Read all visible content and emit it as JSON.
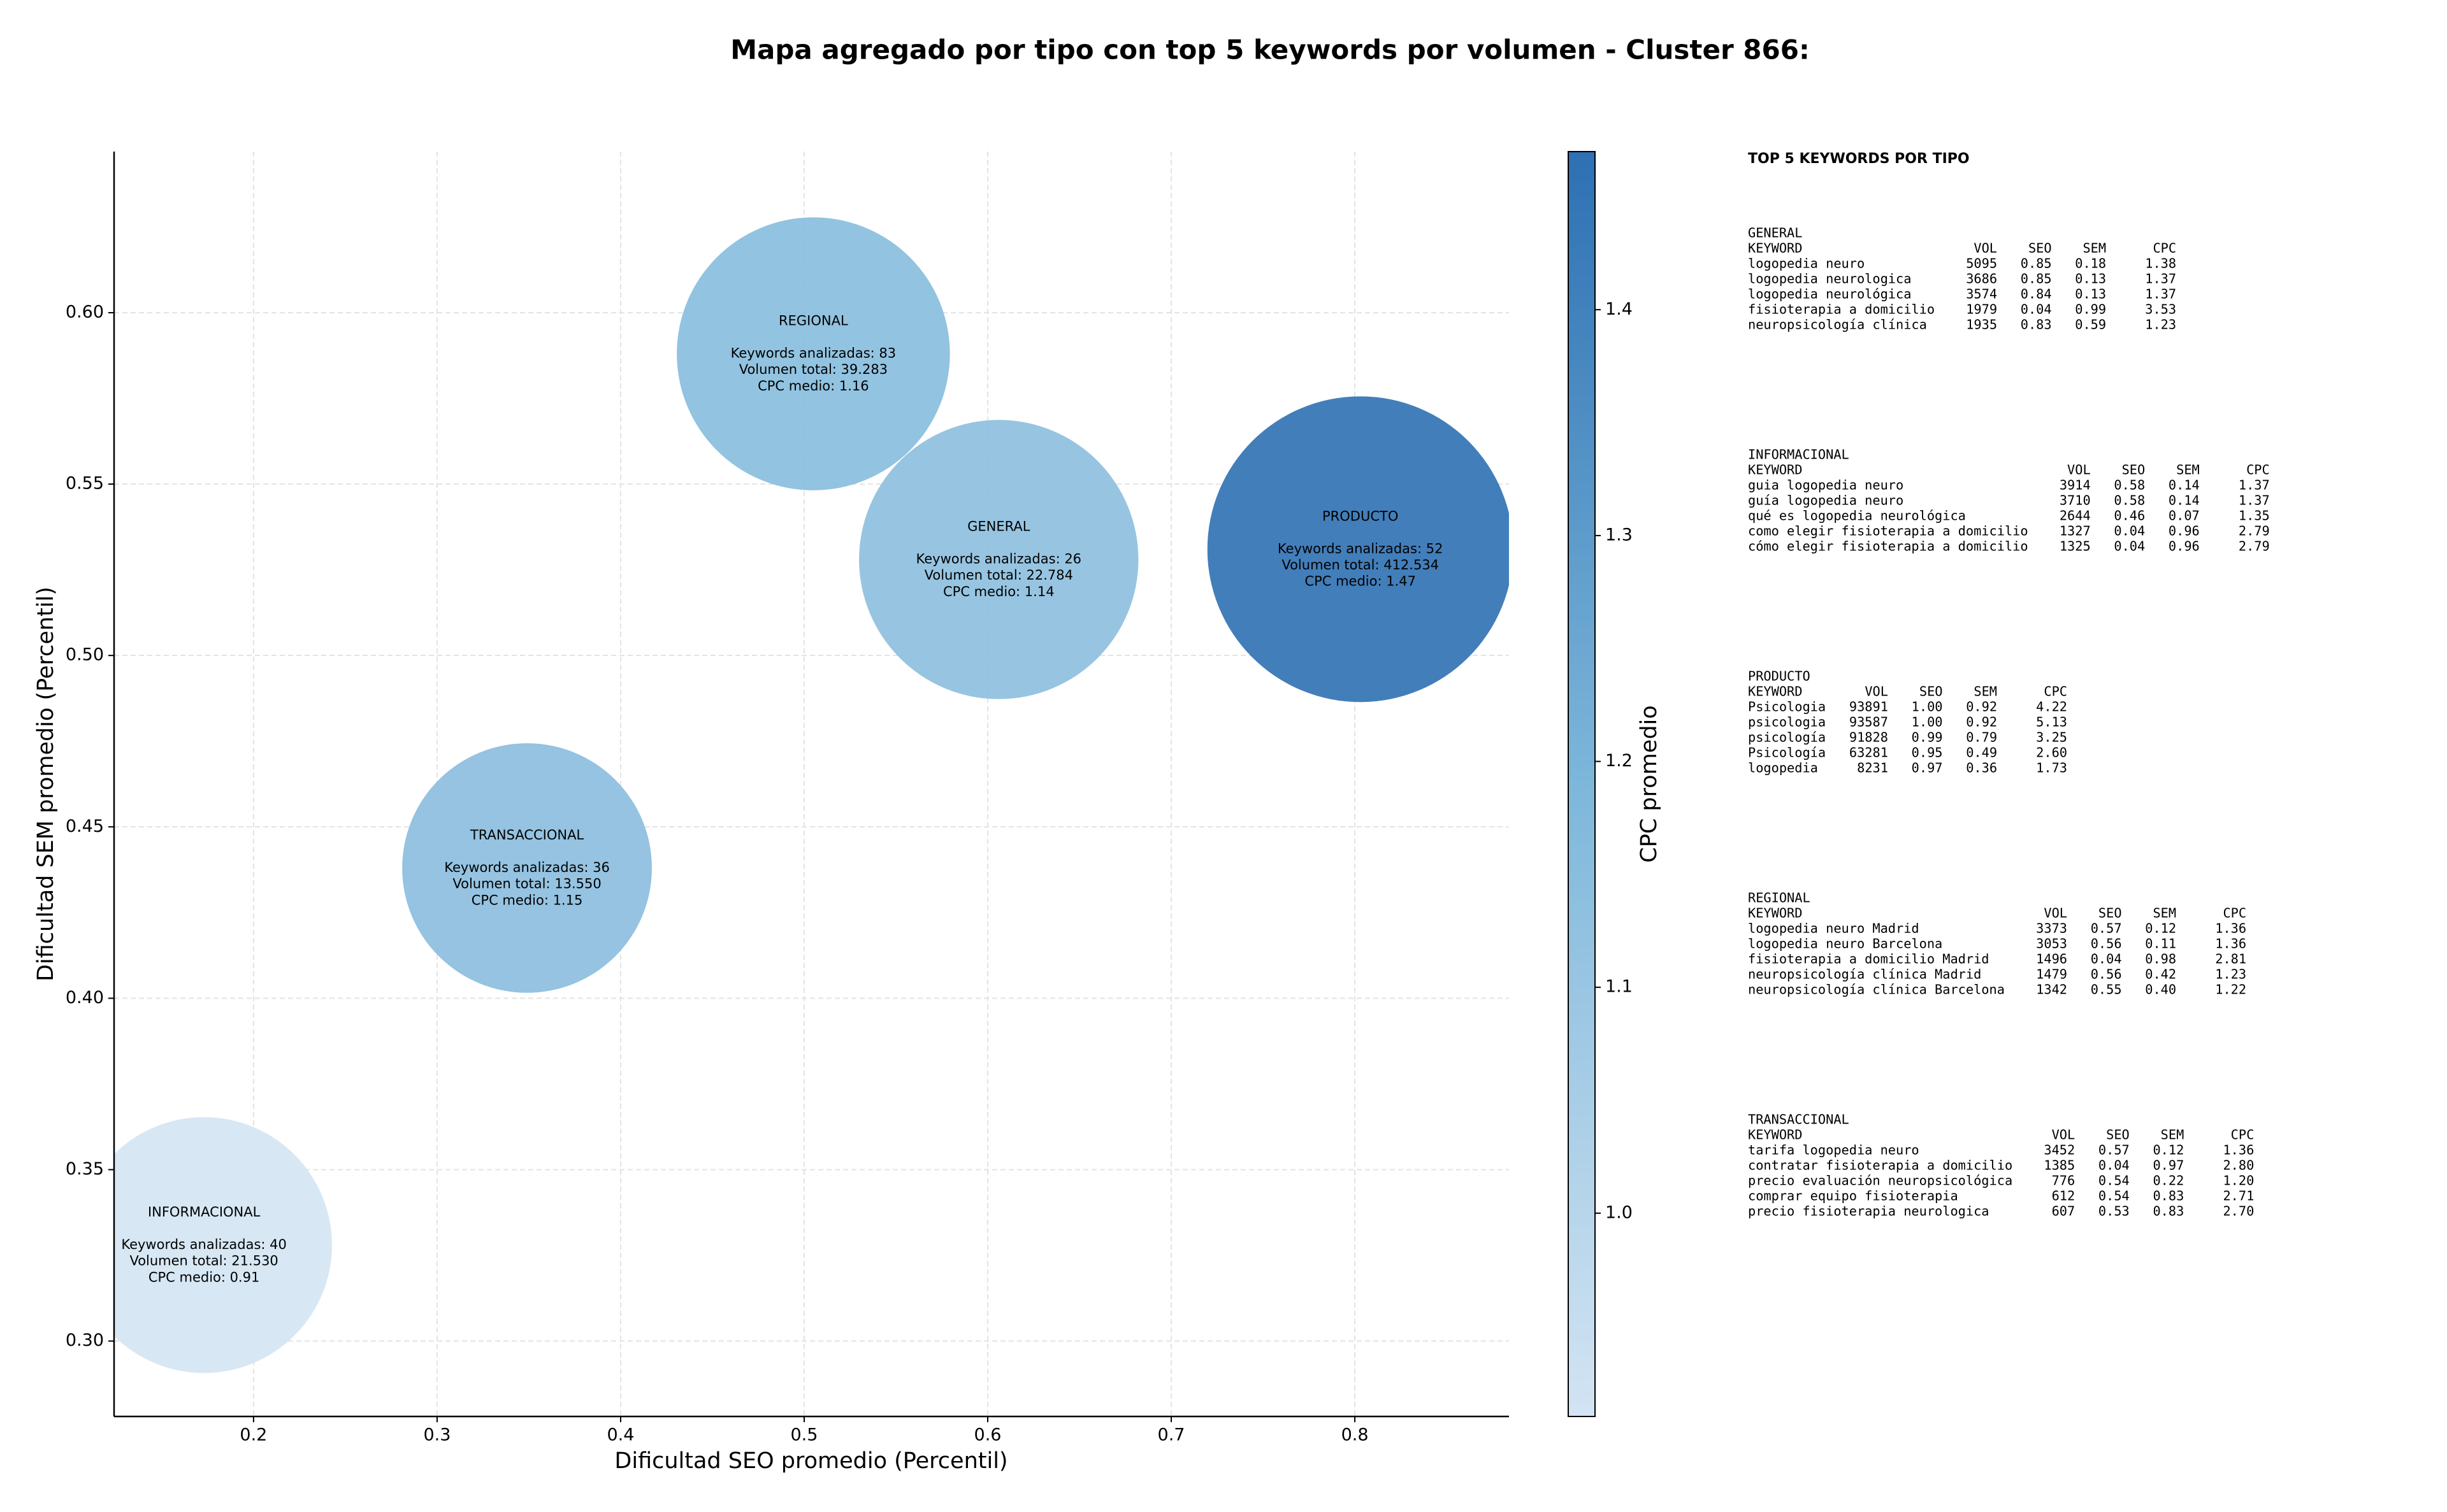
{
  "chart_data": {
    "type": "scatter",
    "title": "Mapa agregado por tipo con top 5 keywords por volumen - Cluster 866:",
    "x_label": "Dificultad SEO promedio (Percentil)",
    "y_label": "Dificultad SEM promedio (Percentil)",
    "x": [
      0.505,
      0.606,
      0.803,
      0.349,
      0.173
    ],
    "values": [
      0.588,
      0.528,
      0.531,
      0.438,
      0.328
    ],
    "sizes": [
      7656,
      8010,
      9604,
      6400,
      6724
    ],
    "cpc": [
      1.16,
      1.14,
      1.47,
      1.15,
      0.91
    ],
    "labels": [
      [
        "REGIONAL",
        "Keywords analizadas: 83",
        "Volumen total: 39.283",
        "CPC medio: 1.16"
      ],
      [
        "GENERAL",
        "Keywords analizadas: 26",
        "Volumen total: 22.784",
        "CPC medio: 1.14"
      ],
      [
        "PRODUCTO",
        "Keywords analizadas: 52",
        "Volumen total: 412.534",
        "CPC medio: 1.47"
      ],
      [
        "TRANSACCIONAL",
        "Keywords analizadas: 36",
        "Volumen total: 13.550",
        "CPC medio: 1.15"
      ],
      [
        "INFORMACIONAL",
        "Keywords analizadas: 40",
        "Volumen total: 21.530",
        "CPC medio: 0.91"
      ]
    ],
    "xlim": [
      0.124,
      0.884
    ],
    "xticks": [
      0.2,
      0.3,
      0.4,
      0.5,
      0.6,
      0.7,
      0.8
    ],
    "ylim": [
      0.278,
      0.647
    ],
    "yticks": [
      {
        "value": 0.3,
        "label": "0.30"
      },
      0.35,
      {
        "value": 0.4,
        "label": "0.40"
      },
      0.45,
      {
        "value": 0.5,
        "label": "0.50"
      },
      0.55,
      {
        "value": 0.6,
        "label": "0.60"
      }
    ],
    "grid": true,
    "colorbar": {
      "label": "CPC promedio",
      "lim": [
        0.91,
        1.47
      ],
      "ticks": [
        {
          "value": 1,
          "label": "1.0"
        },
        1.1,
        1.2,
        1.3,
        1.4
      ],
      "colors": [
        "#d3e4f3",
        "#7db7da",
        "#2d70b3"
      ]
    }
  },
  "keyword_panel": {
    "title": "TOP 5 KEYWORDS POR TIPO",
    "blocks": [
      {
        "name": "GENERAL",
        "columns": [
          "KEYWORD",
          "VOL",
          "SEO",
          "SEM",
          "CPC"
        ],
        "rows": [
          [
            "logopedia neuro",
            "5095",
            "0.85",
            "0.18",
            "1.38"
          ],
          [
            "logopedia neurologica",
            "3686",
            "0.85",
            "0.13",
            "1.37"
          ],
          [
            "logopedia neurológica",
            "3574",
            "0.84",
            "0.13",
            "1.37"
          ],
          [
            "fisioterapia a domicilio",
            "1979",
            "0.04",
            "0.99",
            "3.53"
          ],
          [
            "neuropsicología clínica",
            "1935",
            "0.83",
            "0.59",
            "1.23"
          ]
        ]
      },
      {
        "name": "INFORMACIONAL",
        "columns": [
          "KEYWORD",
          "VOL",
          "SEO",
          "SEM",
          "CPC"
        ],
        "rows": [
          [
            "guia logopedia neuro",
            "3914",
            "0.58",
            "0.14",
            "1.37"
          ],
          [
            "guía logopedia neuro",
            "3710",
            "0.58",
            "0.14",
            "1.37"
          ],
          [
            "qué es logopedia neurológica",
            "2644",
            "0.46",
            "0.07",
            "1.35"
          ],
          [
            "como elegir fisioterapia a domicilio",
            "1327",
            "0.04",
            "0.96",
            "2.79"
          ],
          [
            "cómo elegir fisioterapia a domicilio",
            "1325",
            "0.04",
            "0.96",
            "2.79"
          ]
        ]
      },
      {
        "name": "PRODUCTO",
        "columns": [
          "KEYWORD",
          "VOL",
          "SEO",
          "SEM",
          "CPC"
        ],
        "rows": [
          [
            "Psicologia",
            "93891",
            "1.00",
            "0.92",
            "4.22"
          ],
          [
            "psicologia",
            "93587",
            "1.00",
            "0.92",
            "5.13"
          ],
          [
            "psicología",
            "91828",
            "0.99",
            "0.79",
            "3.25"
          ],
          [
            "Psicología",
            "63281",
            "0.95",
            "0.49",
            "2.60"
          ],
          [
            "logopedia",
            "8231",
            "0.97",
            "0.36",
            "1.73"
          ]
        ]
      },
      {
        "name": "REGIONAL",
        "columns": [
          "KEYWORD",
          "VOL",
          "SEO",
          "SEM",
          "CPC"
        ],
        "rows": [
          [
            "logopedia neuro Madrid",
            "3373",
            "0.57",
            "0.12",
            "1.36"
          ],
          [
            "logopedia neuro Barcelona",
            "3053",
            "0.56",
            "0.11",
            "1.36"
          ],
          [
            "fisioterapia a domicilio Madrid",
            "1496",
            "0.04",
            "0.98",
            "2.81"
          ],
          [
            "neuropsicología clínica Madrid",
            "1479",
            "0.56",
            "0.42",
            "1.23"
          ],
          [
            "neuropsicología clínica Barcelona",
            "1342",
            "0.55",
            "0.40",
            "1.22"
          ]
        ]
      },
      {
        "name": "TRANSACCIONAL",
        "columns": [
          "KEYWORD",
          "VOL",
          "SEO",
          "SEM",
          "CPC"
        ],
        "rows": [
          [
            "tarifa logopedia neuro",
            "3452",
            "0.57",
            "0.12",
            "1.36"
          ],
          [
            "contratar fisioterapia a domicilio",
            "1385",
            "0.04",
            "0.97",
            "2.80"
          ],
          [
            "precio evaluación neuropsicológica",
            "776",
            "0.54",
            "0.22",
            "1.20"
          ],
          [
            "comprar equipo fisioterapia",
            "612",
            "0.54",
            "0.83",
            "2.71"
          ],
          [
            "precio fisioterapia neurologica",
            "607",
            "0.53",
            "0.83",
            "2.70"
          ]
        ]
      }
    ]
  }
}
